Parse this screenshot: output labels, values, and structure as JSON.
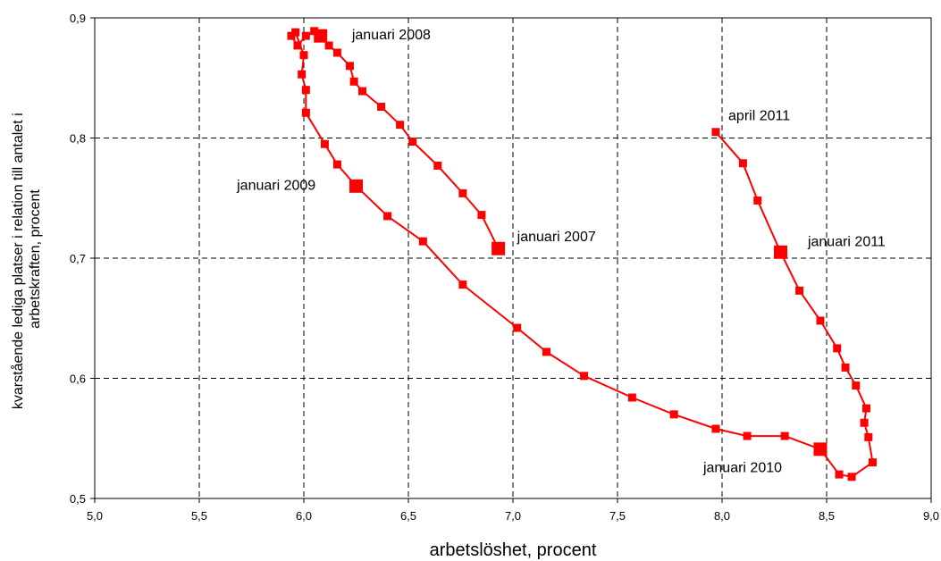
{
  "chart_data": {
    "type": "line",
    "xlabel": "arbetslöshet, procent",
    "ylabel_lines": [
      "kvarstående lediga platser i relation till antalet i",
      "arbetskraften, procent"
    ],
    "xlim": [
      5.0,
      9.0
    ],
    "ylim": [
      0.5,
      0.9
    ],
    "x_ticks": [
      "5,0",
      "5,5",
      "6,0",
      "6,5",
      "7,0",
      "7,5",
      "8,0",
      "8,5",
      "9,0"
    ],
    "y_ticks": [
      "0,5",
      "0,6",
      "0,7",
      "0,8",
      "0,9"
    ],
    "grid": true,
    "line_color": "#ff0000",
    "series": [
      {
        "points": [
          [
            6.93,
            0.708
          ],
          [
            6.85,
            0.736
          ],
          [
            6.76,
            0.754
          ],
          [
            6.64,
            0.777
          ],
          [
            6.52,
            0.797
          ],
          [
            6.46,
            0.811
          ],
          [
            6.37,
            0.826
          ],
          [
            6.28,
            0.839
          ],
          [
            6.24,
            0.847
          ],
          [
            6.22,
            0.86
          ],
          [
            6.16,
            0.871
          ],
          [
            6.12,
            0.877
          ],
          [
            6.08,
            0.885
          ],
          [
            6.05,
            0.889
          ],
          [
            6.01,
            0.885
          ],
          [
            5.97,
            0.877
          ],
          [
            5.94,
            0.885
          ],
          [
            5.96,
            0.888
          ],
          [
            6.0,
            0.869
          ],
          [
            5.99,
            0.853
          ],
          [
            6.01,
            0.84
          ],
          [
            6.01,
            0.821
          ],
          [
            6.1,
            0.795
          ],
          [
            6.16,
            0.778
          ],
          [
            6.25,
            0.76
          ],
          [
            6.4,
            0.735
          ],
          [
            6.57,
            0.714
          ],
          [
            6.76,
            0.678
          ],
          [
            7.02,
            0.642
          ],
          [
            7.16,
            0.622
          ],
          [
            7.34,
            0.602
          ],
          [
            7.57,
            0.584
          ],
          [
            7.77,
            0.57
          ],
          [
            7.97,
            0.558
          ],
          [
            8.12,
            0.552
          ],
          [
            8.3,
            0.552
          ],
          [
            8.47,
            0.541
          ],
          [
            8.56,
            0.52
          ],
          [
            8.62,
            0.518
          ],
          [
            8.72,
            0.53
          ],
          [
            8.7,
            0.551
          ],
          [
            8.68,
            0.563
          ],
          [
            8.69,
            0.575
          ],
          [
            8.64,
            0.594
          ],
          [
            8.59,
            0.609
          ],
          [
            8.55,
            0.625
          ],
          [
            8.47,
            0.648
          ],
          [
            8.37,
            0.673
          ],
          [
            8.28,
            0.705
          ],
          [
            8.17,
            0.748
          ],
          [
            8.1,
            0.779
          ],
          [
            7.97,
            0.805
          ]
        ]
      }
    ],
    "highlighted_points": [
      [
        6.93,
        0.708
      ],
      [
        6.08,
        0.885
      ],
      [
        6.25,
        0.76
      ],
      [
        8.47,
        0.541
      ],
      [
        8.28,
        0.705
      ]
    ],
    "annotations": [
      {
        "text": "januari 2008",
        "x": 6.23,
        "y": 0.882
      },
      {
        "text": "januari 2009",
        "x": 5.68,
        "y": 0.757
      },
      {
        "text": "januari 2007",
        "x": 7.02,
        "y": 0.714
      },
      {
        "text": "april 2011",
        "x": 8.03,
        "y": 0.815
      },
      {
        "text": "januari 2011",
        "x": 8.41,
        "y": 0.71
      },
      {
        "text": "januari 2010",
        "x": 7.91,
        "y": 0.522
      }
    ]
  }
}
